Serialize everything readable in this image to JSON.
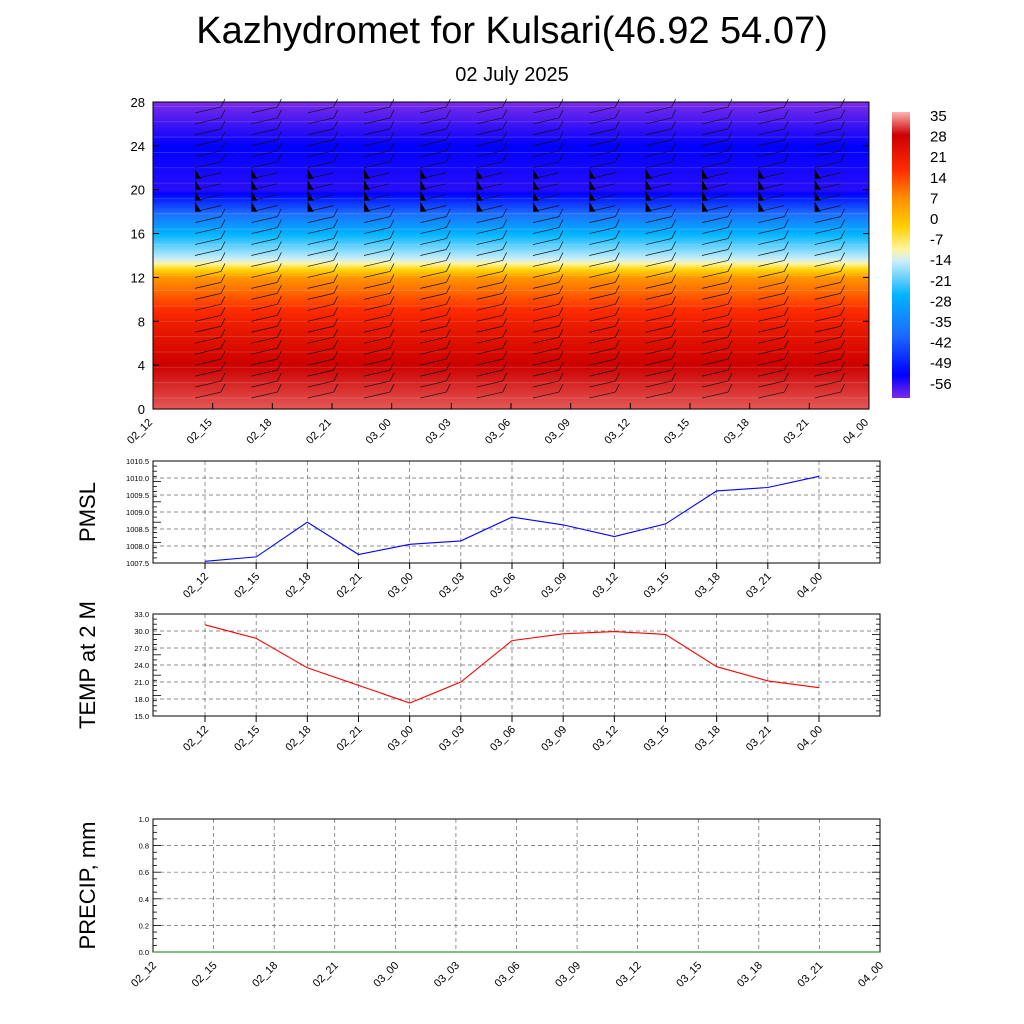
{
  "title": "Kazhydromet for Kulsari(46.92 54.07)",
  "subtitle": "02 July 2025",
  "chart_data": [
    {
      "type": "heatmap",
      "name": "temperature-wind-cross-section",
      "xlabels": [
        "02_12",
        "02_15",
        "02_18",
        "02_21",
        "03_00",
        "03_03",
        "03_06",
        "03_09",
        "03_12",
        "03_15",
        "03_18",
        "03_21",
        "04_00"
      ],
      "yticks": [
        0,
        4,
        8,
        12,
        16,
        20,
        24,
        28
      ],
      "ylim": [
        0,
        28
      ],
      "colorbar_ticks": [
        "35",
        "28",
        "21",
        "14",
        "7",
        "0",
        "-7",
        "-14",
        "-21",
        "-28",
        "-35",
        "-42",
        "-49",
        "-56"
      ],
      "colorbar_range": [
        -60,
        38
      ],
      "level_profile": [
        [
          0,
          32
        ],
        [
          4,
          26
        ],
        [
          8,
          18
        ],
        [
          12,
          4
        ],
        [
          13.4,
          -14
        ],
        [
          16,
          -28
        ],
        [
          20,
          -58
        ],
        [
          24,
          -56
        ],
        [
          28,
          -62
        ]
      ],
      "colors": {
        "warm": "#cc0000",
        "mid": "#ffff90",
        "cold": "#00aaff",
        "deep": "#0000ff",
        "top": "#8a2be2"
      },
      "wind_barbs": true
    },
    {
      "type": "line",
      "name": "pmsl",
      "ylabel": "PMSL",
      "categories": [
        "02_12",
        "02_15",
        "02_18",
        "02_21",
        "03_00",
        "03_03",
        "03_06",
        "03_09",
        "03_12",
        "03_15",
        "03_18",
        "03_21",
        "04_00"
      ],
      "values": [
        1007.55,
        1007.68,
        1008.7,
        1007.75,
        1008.05,
        1008.15,
        1008.85,
        1008.62,
        1008.28,
        1008.65,
        1009.62,
        1009.72,
        1010.05
      ],
      "ylim": [
        1007.5,
        1010.5
      ],
      "yticks": [
        "1007.5",
        "1008.0",
        "1008.5",
        "1009.0",
        "1009.5",
        "1010.0",
        "1010.5"
      ],
      "color": "#0000ff",
      "grid": true
    },
    {
      "type": "line",
      "name": "temp-2m",
      "ylabel": "TEMP at 2 M",
      "categories": [
        "02_12",
        "02_15",
        "02_18",
        "02_21",
        "03_00",
        "03_03",
        "03_06",
        "03_09",
        "03_12",
        "03_15",
        "03_18",
        "03_21",
        "04_00"
      ],
      "values": [
        31.1,
        28.7,
        23.5,
        20.4,
        17.3,
        21.0,
        28.3,
        29.5,
        29.9,
        29.4,
        23.7,
        21.2,
        20.0
      ],
      "ylim": [
        15.0,
        33.0
      ],
      "yticks": [
        "15.0",
        "18.0",
        "21.0",
        "24.0",
        "27.0",
        "30.0",
        "33.0"
      ],
      "color": "#ff0000",
      "grid": true
    },
    {
      "type": "line",
      "name": "precip",
      "ylabel": "PRECIP, mm",
      "categories": [
        "02_12",
        "02_15",
        "02_18",
        "02_21",
        "03_00",
        "03_03",
        "03_06",
        "03_09",
        "03_12",
        "03_15",
        "03_18",
        "03_21",
        "04_00"
      ],
      "values": [
        0,
        0,
        0,
        0,
        0,
        0,
        0,
        0,
        0,
        0,
        0,
        0,
        0
      ],
      "ylim": [
        0,
        1.0
      ],
      "yticks": [
        "0.0",
        "0.2",
        "0.4",
        "0.6",
        "0.8",
        "1.0"
      ],
      "color": "#008000",
      "grid": true
    }
  ]
}
